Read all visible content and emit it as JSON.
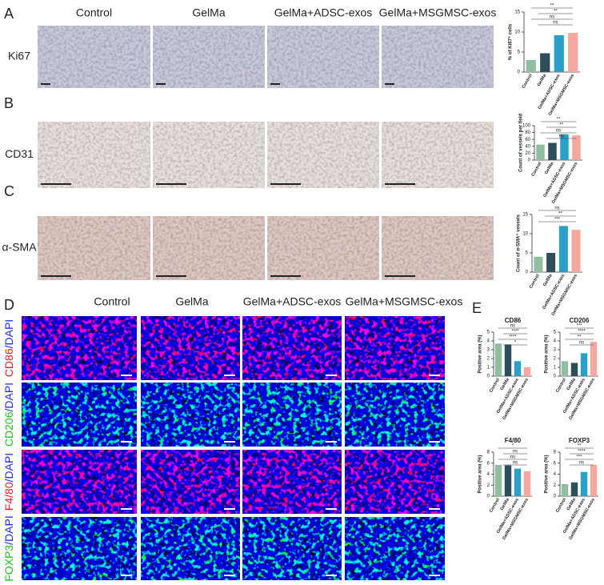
{
  "panel_labels": [
    "A",
    "B",
    "C",
    "D",
    "E"
  ],
  "columns_top": [
    "Control",
    "GelMa",
    "GelMa+ADSC-exos",
    "GelMa+MSGMSC-exos"
  ],
  "rows_top": [
    "Ki67",
    "CD31",
    "α-SMA"
  ],
  "columns_bottom": [
    "Control",
    "GelMa",
    "GelMa+ADSC-exos",
    "GelMa+MSGMSC-exos"
  ],
  "rows_bottom": [
    {
      "marker": "CD86",
      "counterstain": "/DAPI"
    },
    {
      "marker": "CD206",
      "counterstain": "/DAPI"
    },
    {
      "marker": "F4/80",
      "counterstain": "/DAPI"
    },
    {
      "marker": "FOXP3",
      "counterstain": "/DAPI"
    }
  ],
  "chart_data": [
    {
      "type": "bar",
      "y_label": "% of Ki67⁺ cells",
      "categories": [
        "Control",
        "GelMa",
        "GelMa+ADSC-exos",
        "GelMa+MSGMSC-exos"
      ],
      "values": [
        3,
        4.7,
        9.2,
        9.8
      ],
      "colors": [
        "#8fbfa0",
        "#2d4f5c",
        "#2aa0c8",
        "#f4a8a0"
      ],
      "ylim": [
        0,
        15
      ],
      "yticks": [
        0,
        5,
        10,
        15
      ],
      "annotations": [
        "**",
        "**",
        "ns",
        "ns"
      ]
    },
    {
      "type": "bar",
      "y_label": "Count of vessels per field",
      "categories": [
        "Control",
        "GelMa",
        "GelMa+ADSC-exos",
        "GelMa+MSGMSC-exos"
      ],
      "values": [
        45,
        50,
        75,
        72
      ],
      "colors": [
        "#8fbfa0",
        "#2d4f5c",
        "#2aa0c8",
        "#f4a8a0"
      ],
      "ylim": [
        0,
        100
      ],
      "yticks": [
        0,
        20,
        40,
        60,
        80,
        100
      ],
      "annotations": [
        "**",
        "**",
        "ns",
        "ns"
      ]
    },
    {
      "type": "bar",
      "y_label": "Count of α-SMA⁺ vessels",
      "categories": [
        "Control",
        "GelMa",
        "GelMa+ADSC-exos",
        "GelMa+MSGMSC-exos"
      ],
      "values": [
        4,
        5,
        12,
        11
      ],
      "colors": [
        "#8fbfa0",
        "#2d4f5c",
        "#2aa0c8",
        "#f4a8a0"
      ],
      "ylim": [
        0,
        15
      ],
      "yticks": [
        0,
        5,
        10,
        15
      ],
      "annotations": [
        "ns",
        "**",
        "***"
      ]
    },
    {
      "type": "bar",
      "title": "CD86",
      "y_label": "Positive area (%)",
      "categories": [
        "Control",
        "GelMa",
        "GelMa+ADSC-exos",
        "GelMa+MSGMSC-exos"
      ],
      "values": [
        3.7,
        3.6,
        1.7,
        1.0
      ],
      "colors": [
        "#8fbfa0",
        "#2d4f5c",
        "#2aa0c8",
        "#f4a8a0"
      ],
      "ylim": [
        0,
        5
      ],
      "yticks": [
        0,
        1,
        2,
        3,
        4,
        5
      ],
      "annotations": [
        "ns",
        "****",
        "****",
        "*"
      ]
    },
    {
      "type": "bar",
      "title": "CD206",
      "y_label": "Positive area (%)",
      "categories": [
        "Control",
        "GelMa",
        "GelMa+ADSC-exos",
        "GelMa+MSGMSC-exos"
      ],
      "values": [
        1.7,
        1.5,
        2.6,
        3.9
      ],
      "colors": [
        "#8fbfa0",
        "#2d4f5c",
        "#2aa0c8",
        "#f4a8a0"
      ],
      "ylim": [
        0,
        5
      ],
      "yticks": [
        0,
        1,
        2,
        3,
        4,
        5
      ],
      "annotations": [
        "***",
        "****",
        "**",
        "ns"
      ]
    },
    {
      "type": "bar",
      "title": "F4/80",
      "y_label": "Positive area (%)",
      "categories": [
        "Control",
        "GelMa",
        "GelMa+ADSC-exos",
        "GelMa+MSGMSC-exos"
      ],
      "values": [
        5.7,
        5.6,
        5.0,
        4.5
      ],
      "colors": [
        "#8fbfa0",
        "#2d4f5c",
        "#2aa0c8",
        "#f4a8a0"
      ],
      "ylim": [
        0,
        8
      ],
      "yticks": [
        0,
        2,
        4,
        6,
        8
      ],
      "annotations": [
        "*",
        "ns",
        "ns",
        "ns"
      ]
    },
    {
      "type": "bar",
      "title": "FOXP3",
      "y_label": "Positive area (%)",
      "categories": [
        "Control",
        "GelMa",
        "GelMa+ADSC-exos",
        "GelMa+MSGMSC-exos"
      ],
      "values": [
        2.2,
        2.5,
        4.4,
        5.7
      ],
      "colors": [
        "#8fbfa0",
        "#2d4f5c",
        "#2aa0c8",
        "#f4a8a0"
      ],
      "ylim": [
        0,
        8
      ],
      "yticks": [
        0,
        2,
        4,
        6,
        8
      ],
      "annotations": [
        "**",
        "****",
        "***",
        "ns"
      ]
    }
  ]
}
